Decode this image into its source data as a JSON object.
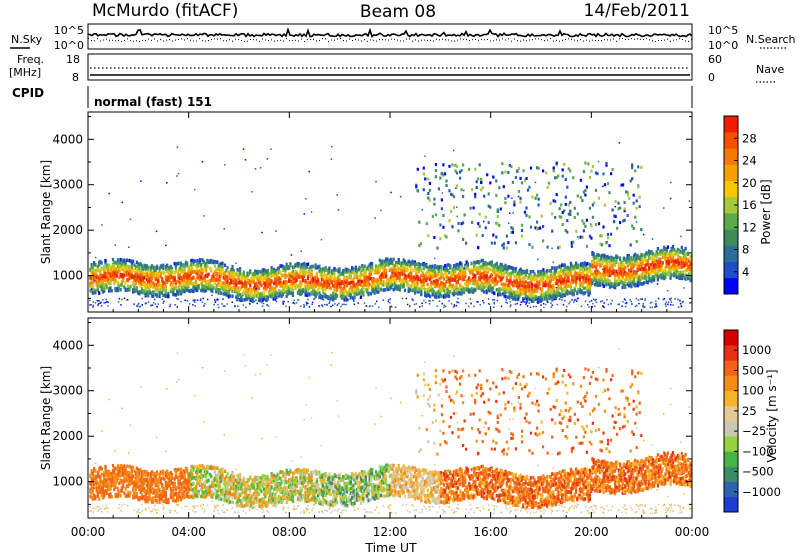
{
  "header": {
    "station": "McMurdo (fitACF)",
    "beam": "Beam 08",
    "date": "14/Feb/2011"
  },
  "noise_panel": {
    "left_label": "N.Sky",
    "right_label": "N.Search",
    "left_ticks": [
      "10^5",
      "10^0"
    ],
    "right_ticks": [
      "10^5",
      "10^0"
    ]
  },
  "freq_panel": {
    "left_label_1": "Freq.",
    "left_label_2": "[MHz]",
    "left_ticks": [
      "18",
      "8"
    ],
    "right_label": "Nave",
    "right_ticks": [
      "60",
      "0"
    ]
  },
  "cpid_panel": {
    "label": "CPID",
    "value": "normal (fast) 151"
  },
  "chart_data": [
    {
      "type": "heatmap",
      "title": "Power",
      "xlabel": "Time UT",
      "ylabel": "Slant Range [km]",
      "xlim": [
        "00:00",
        "24:00"
      ],
      "ylim": [
        200,
        4600
      ],
      "x_ticks": [
        "00:00",
        "04:00",
        "08:00",
        "12:00",
        "16:00",
        "20:00",
        "00:00"
      ],
      "y_ticks": [
        1000,
        2000,
        3000,
        4000
      ],
      "colorbar": {
        "label": "Power [dB]",
        "ticks": [
          "28",
          "24",
          "20",
          "16",
          "12",
          "8",
          "4"
        ],
        "colors": [
          "#0000ff",
          "#1e4ec8",
          "#2c6d9c",
          "#3e8c5c",
          "#5aaa48",
          "#a6c83c",
          "#f6c800",
          "#f6a000",
          "#f57800",
          "#f45000",
          "#ee1f00"
        ]
      }
    },
    {
      "type": "heatmap",
      "title": "Velocity",
      "xlabel": "Time UT",
      "ylabel": "Slant Range [km]",
      "xlim": [
        "00:00",
        "24:00"
      ],
      "ylim": [
        200,
        4600
      ],
      "x_ticks": [
        "00:00",
        "04:00",
        "08:00",
        "12:00",
        "16:00",
        "20:00",
        "00:00"
      ],
      "y_ticks": [
        1000,
        2000,
        3000,
        4000
      ],
      "colorbar": {
        "label": "Velocity [m s⁻¹]",
        "ticks": [
          "1000",
          "500",
          "100",
          "25",
          "−25",
          "−100",
          "−500",
          "−1000"
        ],
        "colors": [
          "#1e3cd2",
          "#2c64b4",
          "#3c8c64",
          "#46b446",
          "#96d23c",
          "#c8c8b4",
          "#e6c896",
          "#f5b428",
          "#f58c14",
          "#f56414",
          "#e63214",
          "#d20000"
        ]
      }
    }
  ],
  "xaxis_label": "Time UT"
}
